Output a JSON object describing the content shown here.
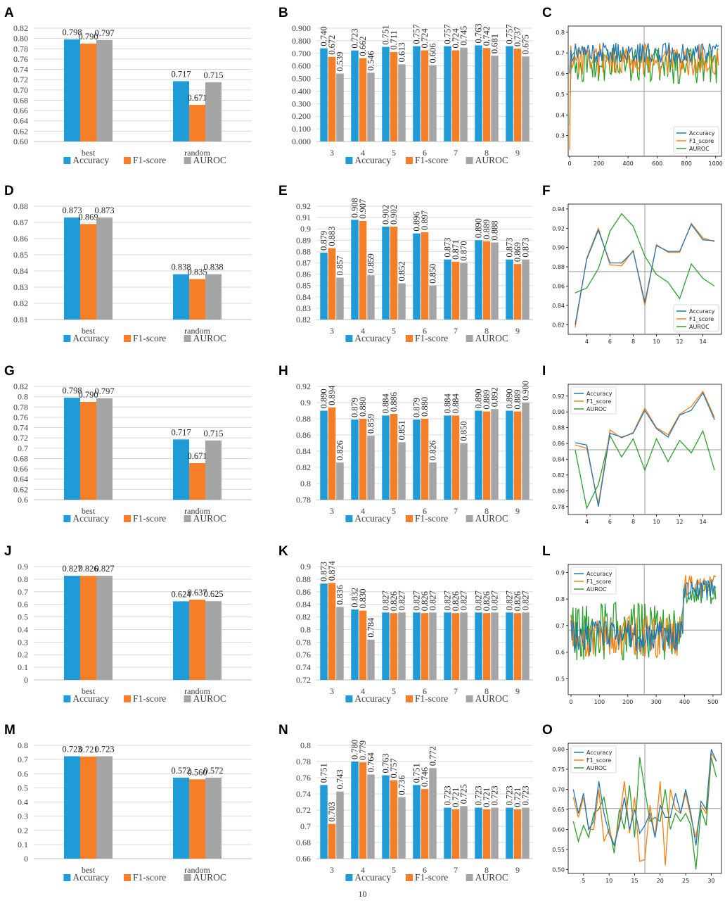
{
  "colors": {
    "Accuracy": "#1f9bd7",
    "F1-score": "#f57e27",
    "AUROC": "#a5a5a5",
    "line_accuracy": "#1f77b4",
    "line_f1": "#ff7f0e",
    "line_auroc": "#2ca02c"
  },
  "page_number": "10",
  "chart_data": [
    {
      "panel": "A",
      "type": "bar",
      "categories": [
        "best",
        "random"
      ],
      "series": [
        {
          "name": "Accuracy",
          "values": [
            0.798,
            0.717
          ]
        },
        {
          "name": "F1-score",
          "values": [
            0.79,
            0.671
          ]
        },
        {
          "name": "AUROC",
          "values": [
            0.797,
            0.715
          ]
        }
      ],
      "ylim": [
        0.6,
        0.82
      ],
      "yticks": [
        0.6,
        0.62,
        0.64,
        0.66,
        0.68,
        0.7,
        0.72,
        0.74,
        0.76,
        0.78,
        0.8,
        0.82
      ],
      "tick_format": "2f",
      "legend": "bottom"
    },
    {
      "panel": "B",
      "type": "bar",
      "categories": [
        "3",
        "4",
        "5",
        "6",
        "7",
        "8",
        "9"
      ],
      "series": [
        {
          "name": "Accuracy",
          "values": [
            0.74,
            0.723,
            0.751,
            0.757,
            0.757,
            0.763,
            0.757
          ]
        },
        {
          "name": "F1-score",
          "values": [
            0.672,
            0.662,
            0.711,
            0.724,
            0.724,
            0.742,
            0.737
          ]
        },
        {
          "name": "AUROC",
          "values": [
            0.539,
            0.546,
            0.613,
            0.606,
            0.745,
            0.681,
            0.675
          ]
        }
      ],
      "ylim": [
        0,
        0.9
      ],
      "yticks": [
        0,
        0.1,
        0.2,
        0.3,
        0.4,
        0.5,
        0.6,
        0.7,
        0.8,
        0.9
      ],
      "tick_format": "3f",
      "rotate_labels": true,
      "legend": "bottom"
    },
    {
      "panel": "C",
      "type": "line",
      "xlim": [
        -10,
        1040
      ],
      "ylim": [
        0.2,
        0.83
      ],
      "xticks": [
        0,
        200,
        400,
        600,
        800,
        1000
      ],
      "yticks": [
        0.3,
        0.4,
        0.5,
        0.6,
        0.7,
        0.8
      ],
      "ytick_format": "1f",
      "gen": {
        "seed": 11,
        "n": 130,
        "x0": 0,
        "x1": 1020,
        "acc": {
          "base": 0.7,
          "amp": 0.05,
          "start": 0.6
        },
        "f1": {
          "base": 0.67,
          "amp": 0.08,
          "start": 0.23
        },
        "auroc": {
          "base": 0.64,
          "amp": 0.09,
          "start": 0.35
        }
      },
      "vline": 510,
      "hline": 0.515,
      "legend_entries": [
        "Accuracy",
        "F1_score",
        "AUROC"
      ],
      "legend": "lower-right"
    },
    {
      "panel": "D",
      "type": "bar",
      "categories": [
        "best",
        "random"
      ],
      "series": [
        {
          "name": "Accuracy",
          "values": [
            0.873,
            0.838
          ]
        },
        {
          "name": "F1-score",
          "values": [
            0.869,
            0.835
          ]
        },
        {
          "name": "AUROC",
          "values": [
            0.873,
            0.838
          ]
        }
      ],
      "ylim": [
        0.81,
        0.88
      ],
      "yticks": [
        0.81,
        0.82,
        0.83,
        0.84,
        0.85,
        0.86,
        0.87,
        0.88
      ],
      "tick_format": "2f",
      "legend": "bottom"
    },
    {
      "panel": "E",
      "type": "bar",
      "categories": [
        "3",
        "4",
        "5",
        "6",
        "7",
        "8",
        "9"
      ],
      "series": [
        {
          "name": "Accuracy",
          "values": [
            0.879,
            0.908,
            0.902,
            0.896,
            0.873,
            0.89,
            0.873
          ]
        },
        {
          "name": "F1-score",
          "values": [
            0.883,
            0.907,
            0.902,
            0.897,
            0.871,
            0.889,
            0.869
          ]
        },
        {
          "name": "AUROC",
          "values": [
            0.857,
            0.859,
            0.852,
            0.85,
            0.87,
            0.888,
            0.873
          ]
        }
      ],
      "ylim": [
        0.82,
        0.92
      ],
      "yticks": [
        0.82,
        0.83,
        0.84,
        0.85,
        0.86,
        0.87,
        0.88,
        0.89,
        0.9,
        0.91,
        0.92
      ],
      "tick_format": "g",
      "rotate_labels": true,
      "legend": "bottom"
    },
    {
      "panel": "F",
      "type": "line",
      "xlim": [
        2.4,
        15.6
      ],
      "ylim": [
        0.81,
        0.945
      ],
      "xticks": [
        4,
        6,
        8,
        10,
        12,
        14
      ],
      "yticks": [
        0.82,
        0.84,
        0.86,
        0.88,
        0.9,
        0.92,
        0.94
      ],
      "ytick_format": "2f",
      "x": [
        3,
        4,
        5,
        6,
        7,
        8,
        9,
        10,
        11,
        12,
        13,
        14,
        15
      ],
      "series": [
        {
          "name": "Accuracy",
          "values": [
            0.82,
            0.888,
            0.918,
            0.884,
            0.884,
            0.896,
            0.843,
            0.902,
            0.896,
            0.896,
            0.924,
            0.908,
            0.907
          ]
        },
        {
          "name": "F1_score",
          "values": [
            0.817,
            0.889,
            0.92,
            0.882,
            0.881,
            0.897,
            0.84,
            0.903,
            0.895,
            0.895,
            0.925,
            0.91,
            0.906
          ]
        },
        {
          "name": "AUROC",
          "values": [
            0.853,
            0.858,
            0.878,
            0.917,
            0.935,
            0.922,
            0.891,
            0.872,
            0.864,
            0.847,
            0.883,
            0.868,
            0.86
          ]
        }
      ],
      "vline": 9,
      "hline": 0.875,
      "legend_entries": [
        "Accuracy",
        "F1_score",
        "AUROC"
      ],
      "legend": "lower-right"
    },
    {
      "panel": "G",
      "type": "bar",
      "categories": [
        "best",
        "random"
      ],
      "series": [
        {
          "name": "Accuracy",
          "values": [
            0.798,
            0.717
          ]
        },
        {
          "name": "F1-score",
          "values": [
            0.79,
            0.671
          ]
        },
        {
          "name": "AUROC",
          "values": [
            0.797,
            0.715
          ]
        }
      ],
      "ylim": [
        0.6,
        0.82
      ],
      "yticks": [
        0.6,
        0.62,
        0.64,
        0.66,
        0.68,
        0.7,
        0.72,
        0.74,
        0.76,
        0.78,
        0.8,
        0.82
      ],
      "tick_format": "g",
      "legend": "bottom"
    },
    {
      "panel": "H",
      "type": "bar",
      "categories": [
        "3",
        "4",
        "5",
        "6",
        "7",
        "8",
        "9"
      ],
      "series": [
        {
          "name": "Accuracy",
          "values": [
            0.89,
            0.879,
            0.884,
            0.879,
            0.884,
            0.89,
            0.89
          ]
        },
        {
          "name": "F1-score",
          "values": [
            0.894,
            0.88,
            0.886,
            0.88,
            0.884,
            0.889,
            0.889
          ]
        },
        {
          "name": "AUROC",
          "values": [
            0.826,
            0.859,
            0.851,
            0.826,
            0.85,
            0.892,
            0.9
          ]
        }
      ],
      "ylim": [
        0.78,
        0.92
      ],
      "yticks": [
        0.78,
        0.8,
        0.82,
        0.84,
        0.86,
        0.88,
        0.9,
        0.92
      ],
      "tick_format": "g",
      "rotate_labels": true,
      "legend": "bottom"
    },
    {
      "panel": "I",
      "type": "line",
      "xlim": [
        2.4,
        15.6
      ],
      "ylim": [
        0.77,
        0.935
      ],
      "xticks": [
        4,
        6,
        8,
        10,
        12,
        14
      ],
      "yticks": [
        0.78,
        0.8,
        0.82,
        0.84,
        0.86,
        0.88,
        0.9,
        0.92
      ],
      "ytick_format": "2f",
      "x": [
        3,
        4,
        5,
        6,
        7,
        8,
        9,
        10,
        11,
        12,
        13,
        14,
        15
      ],
      "series": [
        {
          "name": "Accuracy",
          "values": [
            0.861,
            0.858,
            0.78,
            0.873,
            0.868,
            0.873,
            0.902,
            0.879,
            0.868,
            0.896,
            0.902,
            0.924,
            0.89
          ]
        },
        {
          "name": "F1_score",
          "values": [
            0.858,
            0.854,
            0.783,
            0.877,
            0.867,
            0.874,
            0.905,
            0.88,
            0.871,
            0.897,
            0.907,
            0.926,
            0.893
          ]
        },
        {
          "name": "AUROC",
          "values": [
            0.852,
            0.778,
            0.808,
            0.87,
            0.843,
            0.866,
            0.826,
            0.866,
            0.837,
            0.864,
            0.848,
            0.876,
            0.826
          ]
        }
      ],
      "vline": 9,
      "hline": 0.852,
      "legend_entries": [
        "Accuracy",
        "F1_score",
        "AUROC"
      ],
      "legend": "upper-left"
    },
    {
      "panel": "J",
      "type": "bar",
      "categories": [
        "best",
        "random"
      ],
      "series": [
        {
          "name": "Accuracy",
          "values": [
            0.827,
            0.624
          ]
        },
        {
          "name": "F1-score",
          "values": [
            0.826,
            0.637
          ]
        },
        {
          "name": "AUROC",
          "values": [
            0.827,
            0.625
          ]
        }
      ],
      "ylim": [
        0,
        0.9
      ],
      "yticks": [
        0,
        0.1,
        0.2,
        0.3,
        0.4,
        0.5,
        0.6,
        0.7,
        0.8,
        0.9
      ],
      "tick_format": "g",
      "legend": "bottom"
    },
    {
      "panel": "K",
      "type": "bar",
      "categories": [
        "3",
        "4",
        "5",
        "6",
        "7",
        "8",
        "9"
      ],
      "series": [
        {
          "name": "Accuracy",
          "values": [
            0.873,
            0.832,
            0.827,
            0.827,
            0.827,
            0.827,
            0.827
          ]
        },
        {
          "name": "F1-score",
          "values": [
            0.874,
            0.83,
            0.826,
            0.826,
            0.826,
            0.826,
            0.826
          ]
        },
        {
          "name": "AUROC",
          "values": [
            0.836,
            0.784,
            0.827,
            0.827,
            0.827,
            0.827,
            0.827
          ]
        }
      ],
      "ylim": [
        0.72,
        0.9
      ],
      "yticks": [
        0.72,
        0.74,
        0.76,
        0.78,
        0.8,
        0.82,
        0.84,
        0.86,
        0.88,
        0.9
      ],
      "tick_format": "g",
      "rotate_labels": true,
      "legend": "bottom"
    },
    {
      "panel": "L",
      "type": "line",
      "xlim": [
        -10,
        530
      ],
      "ylim": [
        0.44,
        0.93
      ],
      "xticks": [
        0,
        100,
        200,
        300,
        400,
        500
      ],
      "yticks": [
        0.5,
        0.6,
        0.7,
        0.8,
        0.9
      ],
      "ytick_format": "1f",
      "gen": {
        "seed": 29,
        "n": 150,
        "x0": 0,
        "x1": 510,
        "cut": 395,
        "acc": {
          "base": 0.66,
          "amp": 0.06,
          "start": 0.72,
          "tail": 0.84
        },
        "f1": {
          "base": 0.66,
          "amp": 0.08,
          "start": 0.7,
          "tail": 0.85
        },
        "auroc": {
          "base": 0.68,
          "amp": 0.11,
          "start": 0.74,
          "tail": 0.82
        }
      },
      "vline": 258,
      "hline": 0.683,
      "legend_entries": [
        "Accuracy",
        "F1_score",
        "AUROC"
      ],
      "legend": "upper-left"
    },
    {
      "panel": "M",
      "type": "bar",
      "categories": [
        "best",
        "random"
      ],
      "series": [
        {
          "name": "Accuracy",
          "values": [
            0.723,
            0.572
          ]
        },
        {
          "name": "F1-score",
          "values": [
            0.721,
            0.56
          ]
        },
        {
          "name": "AUROC",
          "values": [
            0.723,
            0.572
          ]
        }
      ],
      "ylim": [
        0,
        0.8
      ],
      "yticks": [
        0,
        0.1,
        0.2,
        0.3,
        0.4,
        0.5,
        0.6,
        0.7,
        0.8
      ],
      "tick_format": "g",
      "legend": "bottom"
    },
    {
      "panel": "N",
      "type": "bar",
      "categories": [
        "3",
        "4",
        "5",
        "6",
        "7",
        "8",
        "9"
      ],
      "series": [
        {
          "name": "Accuracy",
          "values": [
            0.751,
            0.78,
            0.763,
            0.751,
            0.723,
            0.723,
            0.723
          ]
        },
        {
          "name": "F1-score",
          "values": [
            0.703,
            0.779,
            0.757,
            0.746,
            0.721,
            0.721,
            0.721
          ]
        },
        {
          "name": "AUROC",
          "values": [
            0.743,
            0.764,
            0.736,
            0.772,
            0.725,
            0.723,
            0.723
          ]
        }
      ],
      "ylim": [
        0.66,
        0.8
      ],
      "yticks": [
        0.66,
        0.68,
        0.7,
        0.72,
        0.74,
        0.76,
        0.78,
        0.8
      ],
      "tick_format": "g",
      "rotate_labels": true,
      "legend": "bottom"
    },
    {
      "panel": "O",
      "type": "line",
      "xlim": [
        2,
        32
      ],
      "ylim": [
        0.49,
        0.815
      ],
      "xticks": [
        5,
        10,
        15,
        20,
        25,
        30
      ],
      "yticks": [
        0.5,
        0.55,
        0.6,
        0.65,
        0.7,
        0.75,
        0.8
      ],
      "ytick_format": "2f",
      "x": [
        3,
        4,
        5,
        6,
        7,
        8,
        9,
        10,
        11,
        12,
        13,
        14,
        15,
        16,
        17,
        18,
        19,
        20,
        21,
        22,
        23,
        24,
        25,
        26,
        27,
        28,
        29,
        30,
        31
      ],
      "series": [
        {
          "name": "Accuracy",
          "values": [
            0.7,
            0.64,
            0.69,
            0.6,
            0.62,
            0.72,
            0.64,
            0.59,
            0.56,
            0.61,
            0.68,
            0.6,
            0.65,
            0.59,
            0.61,
            0.64,
            0.58,
            0.66,
            0.63,
            0.63,
            0.69,
            0.64,
            0.7,
            0.64,
            0.56,
            0.67,
            0.65,
            0.8,
            0.77
          ]
        },
        {
          "name": "F1_score",
          "values": [
            0.68,
            0.63,
            0.68,
            0.6,
            0.6,
            0.7,
            0.57,
            0.6,
            0.56,
            0.62,
            0.72,
            0.59,
            0.68,
            0.52,
            0.525,
            0.66,
            0.58,
            0.72,
            0.51,
            0.7,
            0.65,
            0.64,
            0.69,
            0.63,
            0.58,
            0.66,
            0.64,
            0.79,
            0.77
          ]
        },
        {
          "name": "AUROC",
          "values": [
            0.62,
            0.57,
            0.61,
            0.58,
            0.64,
            0.65,
            0.68,
            0.61,
            0.54,
            0.65,
            0.6,
            0.71,
            0.58,
            0.78,
            0.7,
            0.62,
            0.63,
            0.62,
            0.7,
            0.6,
            0.64,
            0.62,
            0.64,
            0.61,
            0.5,
            0.65,
            0.61,
            0.78,
            0.73
          ]
        }
      ],
      "vline": 17,
      "hline": 0.652,
      "legend_entries": [
        "Accuracy",
        "F1_score",
        "AUROC"
      ],
      "legend": "upper-left"
    }
  ]
}
